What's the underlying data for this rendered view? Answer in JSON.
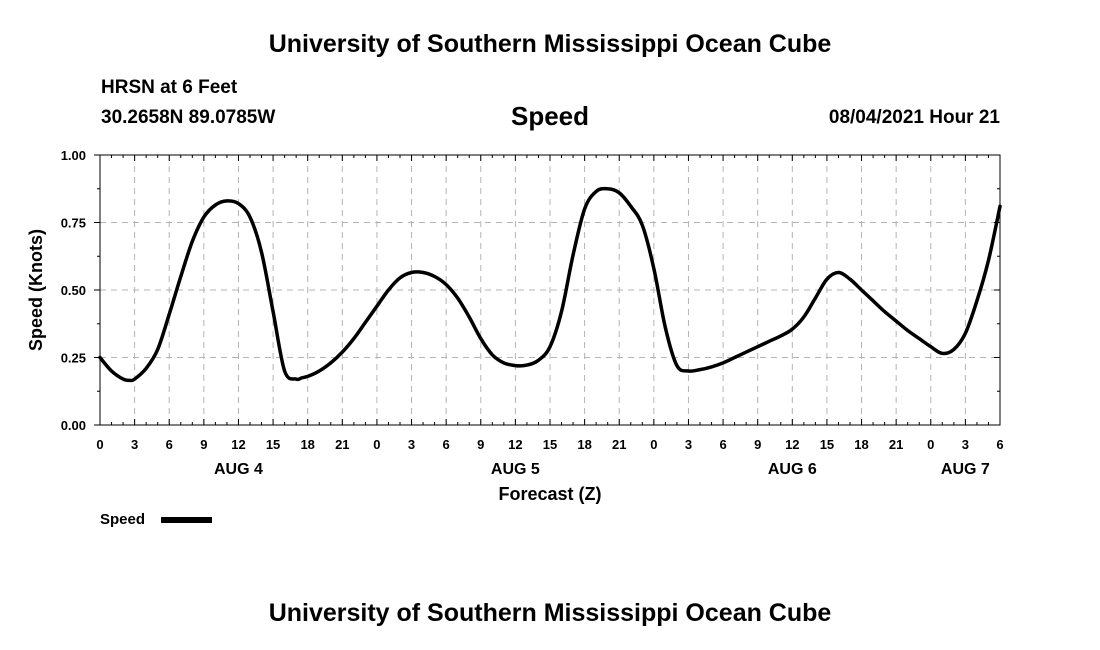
{
  "header": {
    "title": "University of Southern Mississippi Ocean Cube",
    "station": "HRSN at 6 Feet",
    "coords": "30.2658N  89.0785W",
    "subtitle": "Speed",
    "datetime": "08/04/2021 Hour 21"
  },
  "footer": {
    "title": "University of Southern Mississippi Ocean Cube"
  },
  "chart_data": {
    "type": "line",
    "title": "Speed",
    "xlabel": "Forecast (Z)",
    "ylabel": "Speed (Knots)",
    "ylim": [
      0,
      1
    ],
    "xlim_hours": [
      0,
      78
    ],
    "yticks": [
      0,
      0.25,
      0.5,
      0.75,
      1
    ],
    "ytick_labels": [
      "0.00",
      "0.25",
      "0.50",
      "0.75",
      "1.00"
    ],
    "xtick_hours": [
      0,
      3,
      6,
      9,
      12,
      15,
      18,
      21,
      24,
      27,
      30,
      33,
      36,
      39,
      42,
      45,
      48,
      51,
      54,
      57,
      60,
      63,
      66,
      69,
      72,
      75,
      78
    ],
    "xtick_labels": [
      "0",
      "3",
      "6",
      "9",
      "12",
      "15",
      "18",
      "21",
      "0",
      "3",
      "6",
      "9",
      "12",
      "15",
      "18",
      "21",
      "0",
      "3",
      "6",
      "9",
      "12",
      "15",
      "18",
      "21",
      "0",
      "3",
      "6"
    ],
    "date_labels": [
      {
        "hour": 12,
        "label": "AUG 4"
      },
      {
        "hour": 36,
        "label": "AUG 5"
      },
      {
        "hour": 60,
        "label": "AUG 6"
      },
      {
        "hour": 75,
        "label": "AUG 7"
      }
    ],
    "grid": true,
    "legend": {
      "label": "Speed",
      "placement": "bottom-left"
    },
    "line_color": "#000000",
    "grid_color": "#b4b4b4",
    "series": [
      {
        "name": "Speed",
        "x": [
          0,
          1,
          2,
          2.6,
          3,
          4,
          5,
          6,
          7,
          8,
          9,
          10,
          11,
          12,
          13,
          14,
          15,
          16,
          17,
          17.5,
          18,
          19,
          20,
          21,
          22,
          23,
          24,
          25,
          26,
          27,
          28,
          29,
          30,
          31,
          32,
          33,
          34,
          35,
          36,
          37,
          38,
          39,
          40,
          41,
          42,
          43,
          44,
          45,
          46,
          47,
          48,
          49,
          50,
          51,
          52,
          53,
          54,
          55,
          56,
          57,
          58,
          59,
          60,
          61,
          62,
          63,
          64,
          65,
          66,
          67,
          68,
          69,
          70,
          71,
          72,
          73,
          74,
          75,
          76,
          77,
          78
        ],
        "y": [
          0.25,
          0.2,
          0.17,
          0.165,
          0.17,
          0.21,
          0.28,
          0.41,
          0.55,
          0.68,
          0.77,
          0.815,
          0.83,
          0.82,
          0.77,
          0.64,
          0.42,
          0.2,
          0.17,
          0.175,
          0.18,
          0.2,
          0.23,
          0.27,
          0.32,
          0.38,
          0.44,
          0.5,
          0.545,
          0.565,
          0.565,
          0.55,
          0.52,
          0.47,
          0.4,
          0.32,
          0.26,
          0.23,
          0.22,
          0.222,
          0.24,
          0.29,
          0.42,
          0.63,
          0.8,
          0.865,
          0.875,
          0.86,
          0.81,
          0.74,
          0.58,
          0.36,
          0.22,
          0.2,
          0.205,
          0.215,
          0.23,
          0.25,
          0.27,
          0.29,
          0.31,
          0.33,
          0.355,
          0.4,
          0.47,
          0.54,
          0.565,
          0.54,
          0.5,
          0.46,
          0.42,
          0.385,
          0.35,
          0.32,
          0.29,
          0.265,
          0.28,
          0.34,
          0.46,
          0.61,
          0.81
        ]
      }
    ]
  }
}
